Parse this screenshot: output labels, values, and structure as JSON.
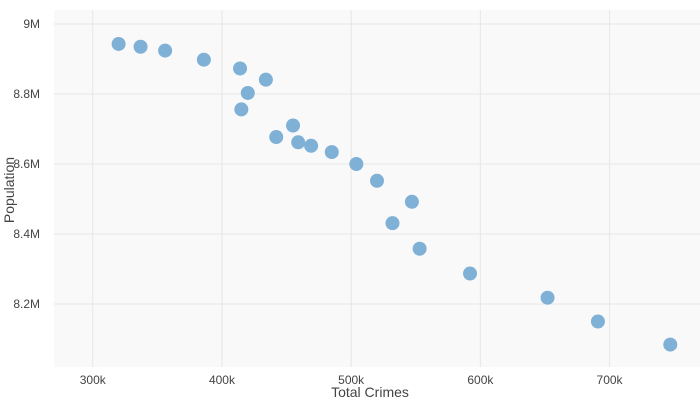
{
  "chart_data": {
    "type": "scatter",
    "title": "",
    "xlabel": "Total Crimes",
    "ylabel": "Population",
    "xlim": [
      270000,
      770000
    ],
    "ylim": [
      8020000,
      9040000
    ],
    "xticks": [
      300000,
      400000,
      500000,
      600000,
      700000
    ],
    "xtick_labels": [
      "300k",
      "400k",
      "500k",
      "600k",
      "700k"
    ],
    "yticks": [
      8200000,
      8400000,
      8600000,
      8800000,
      9000000
    ],
    "ytick_labels": [
      "8.2M",
      "8.4M",
      "8.6M",
      "8.8M",
      "9M"
    ],
    "grid": true,
    "marker_color": "#7fb0d5",
    "plot_bg": "#f9f9f9",
    "grid_color": "#e6e6e6",
    "series": [
      {
        "points": [
          {
            "x": 320000,
            "y": 8943000
          },
          {
            "x": 337000,
            "y": 8935000
          },
          {
            "x": 356000,
            "y": 8924000
          },
          {
            "x": 386000,
            "y": 8898000
          },
          {
            "x": 414000,
            "y": 8873000
          },
          {
            "x": 420000,
            "y": 8803000
          },
          {
            "x": 434000,
            "y": 8841000
          },
          {
            "x": 415000,
            "y": 8756000
          },
          {
            "x": 455000,
            "y": 8710000
          },
          {
            "x": 442000,
            "y": 8677000
          },
          {
            "x": 459000,
            "y": 8662000
          },
          {
            "x": 469000,
            "y": 8652000
          },
          {
            "x": 485000,
            "y": 8634000
          },
          {
            "x": 504000,
            "y": 8600000
          },
          {
            "x": 520000,
            "y": 8552000
          },
          {
            "x": 547000,
            "y": 8492000
          },
          {
            "x": 532000,
            "y": 8431000
          },
          {
            "x": 553000,
            "y": 8358000
          },
          {
            "x": 592000,
            "y": 8287000
          },
          {
            "x": 652000,
            "y": 8218000
          },
          {
            "x": 691000,
            "y": 8150000
          },
          {
            "x": 747000,
            "y": 8084000
          }
        ]
      }
    ]
  }
}
